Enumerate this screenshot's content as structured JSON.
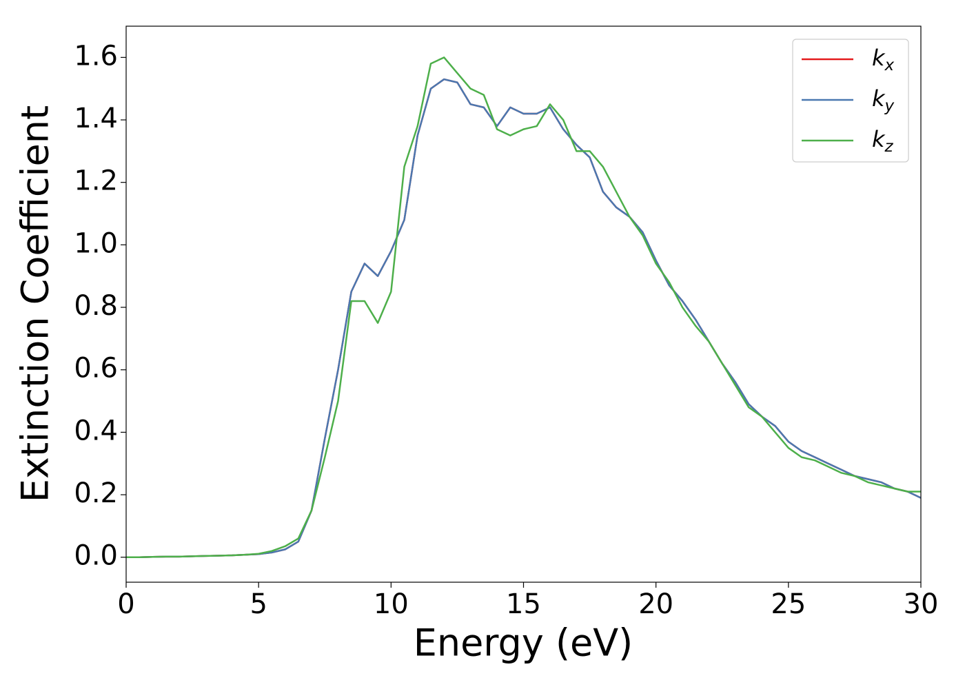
{
  "chart_data": {
    "type": "line",
    "x_label": "Energy (eV)",
    "y_label": "Extinction Coefficient",
    "x": [
      0,
      0.5,
      1,
      1.5,
      2,
      2.5,
      3,
      3.5,
      4,
      4.5,
      5,
      5.5,
      6,
      6.5,
      7,
      7.5,
      8,
      8.5,
      9,
      9.5,
      10,
      10.5,
      11,
      11.5,
      12,
      12.5,
      13,
      13.5,
      14,
      14.5,
      15,
      15.5,
      16,
      16.5,
      17,
      17.5,
      18,
      18.5,
      19,
      19.5,
      20,
      20.5,
      21,
      21.5,
      22,
      22.5,
      23,
      23.5,
      24,
      24.5,
      25,
      25.5,
      26,
      26.5,
      27,
      27.5,
      28,
      28.5,
      29,
      29.5,
      30
    ],
    "series": [
      {
        "name": "kx",
        "color": "#e41a1c",
        "values": [
          0,
          0,
          0.001,
          0.002,
          0.002,
          0.003,
          0.004,
          0.005,
          0.006,
          0.008,
          0.01,
          0.015,
          0.025,
          0.05,
          0.15,
          0.38,
          0.6,
          0.85,
          0.94,
          0.9,
          0.98,
          1.08,
          1.35,
          1.5,
          1.53,
          1.52,
          1.45,
          1.44,
          1.38,
          1.44,
          1.42,
          1.42,
          1.44,
          1.37,
          1.32,
          1.28,
          1.17,
          1.12,
          1.09,
          1.04,
          0.95,
          0.87,
          0.82,
          0.76,
          0.69,
          0.62,
          0.56,
          0.49,
          0.45,
          0.42,
          0.37,
          0.34,
          0.32,
          0.3,
          0.28,
          0.26,
          0.25,
          0.24,
          0.22,
          0.21,
          0.19
        ]
      },
      {
        "name": "ky",
        "color": "#4a78b0",
        "values": [
          0,
          0,
          0.001,
          0.002,
          0.002,
          0.003,
          0.004,
          0.005,
          0.006,
          0.008,
          0.01,
          0.015,
          0.025,
          0.05,
          0.15,
          0.38,
          0.6,
          0.85,
          0.94,
          0.9,
          0.98,
          1.08,
          1.35,
          1.5,
          1.53,
          1.52,
          1.45,
          1.44,
          1.38,
          1.44,
          1.42,
          1.42,
          1.44,
          1.37,
          1.32,
          1.28,
          1.17,
          1.12,
          1.09,
          1.04,
          0.95,
          0.87,
          0.82,
          0.76,
          0.69,
          0.62,
          0.56,
          0.49,
          0.45,
          0.42,
          0.37,
          0.34,
          0.32,
          0.3,
          0.28,
          0.26,
          0.25,
          0.24,
          0.22,
          0.21,
          0.19
        ]
      },
      {
        "name": "kz",
        "color": "#4daf4a",
        "values": [
          0,
          0,
          0.001,
          0.002,
          0.002,
          0.003,
          0.004,
          0.005,
          0.006,
          0.008,
          0.011,
          0.02,
          0.035,
          0.06,
          0.15,
          0.32,
          0.5,
          0.82,
          0.82,
          0.75,
          0.85,
          1.25,
          1.38,
          1.58,
          1.6,
          1.55,
          1.5,
          1.48,
          1.37,
          1.35,
          1.37,
          1.38,
          1.45,
          1.4,
          1.3,
          1.3,
          1.25,
          1.17,
          1.09,
          1.03,
          0.94,
          0.88,
          0.8,
          0.74,
          0.69,
          0.62,
          0.55,
          0.48,
          0.45,
          0.4,
          0.35,
          0.32,
          0.31,
          0.29,
          0.27,
          0.26,
          0.24,
          0.23,
          0.22,
          0.21,
          0.21
        ]
      }
    ],
    "xlim": [
      0,
      30
    ],
    "xticks": [
      0,
      5,
      10,
      15,
      20,
      25,
      30
    ],
    "ylim": [
      -0.08,
      1.7
    ],
    "yticks": [
      {
        "value": 0,
        "label": "0.0"
      },
      {
        "value": 0.2,
        "label": "0.2"
      },
      {
        "value": 0.4,
        "label": "0.4"
      },
      {
        "value": 0.6,
        "label": "0.6"
      },
      {
        "value": 0.8,
        "label": "0.8"
      },
      {
        "value": 1.0,
        "label": "1.0"
      },
      {
        "value": 1.2,
        "label": "1.2"
      },
      {
        "value": 1.4,
        "label": "1.4"
      },
      {
        "value": 1.6,
        "label": "1.6"
      }
    ],
    "legend": "upper right",
    "grid": false
  }
}
